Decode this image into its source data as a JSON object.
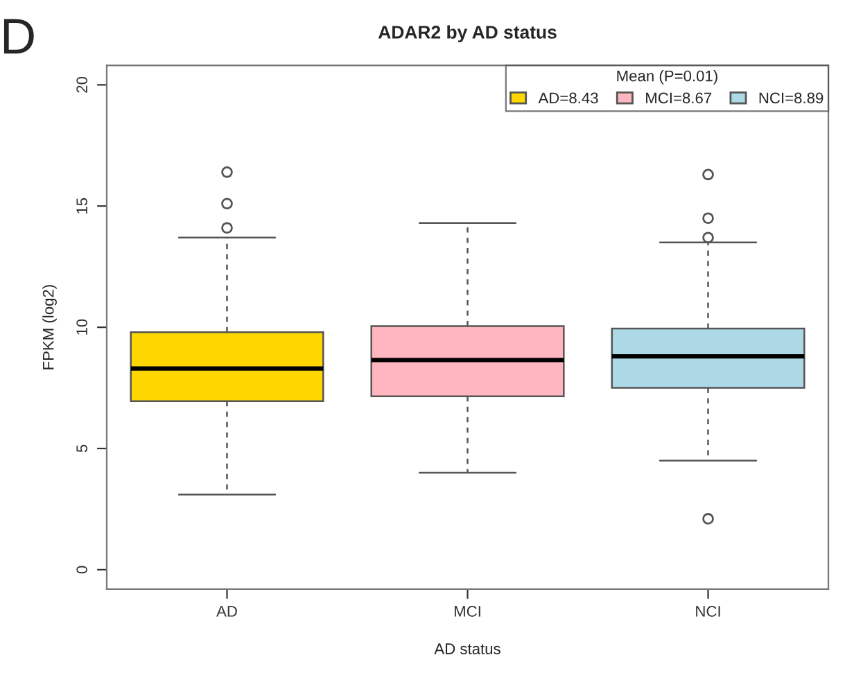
{
  "chart_data": {
    "type": "box",
    "title": "ADAR2 by AD status",
    "xlabel": "AD status",
    "ylabel": "FPKM (log2)",
    "legend_title": "Mean (P=0.01)",
    "legend": "top right",
    "grid": false,
    "annotations": [
      "D"
    ],
    "categories": [
      "AD",
      "MCI",
      "NCI"
    ],
    "ylim": [
      -0.8,
      20.8
    ],
    "yticks": [
      0,
      5,
      10,
      15,
      20
    ],
    "series": [
      {
        "name": "AD=8.43",
        "color": "#ffd700",
        "boxes": [
          {
            "low": 3.1,
            "q1": 6.95,
            "median": 8.3,
            "q3": 9.8,
            "high": 13.7,
            "outliers": [
              14.1,
              15.1,
              16.4
            ]
          },
          null,
          null
        ]
      },
      {
        "name": "MCI=8.67",
        "color": "#ffb6c1",
        "boxes": [
          null,
          {
            "low": 4.0,
            "q1": 7.15,
            "median": 8.65,
            "q3": 10.05,
            "high": 14.3
          },
          null
        ]
      },
      {
        "name": "NCI=8.89",
        "color": "#add8e6",
        "boxes": [
          null,
          null,
          {
            "low": 4.5,
            "q1": 7.5,
            "median": 8.8,
            "q3": 9.95,
            "high": 13.5,
            "outliers": [
              2.1,
              13.7,
              14.5,
              16.3
            ]
          }
        ]
      }
    ]
  }
}
